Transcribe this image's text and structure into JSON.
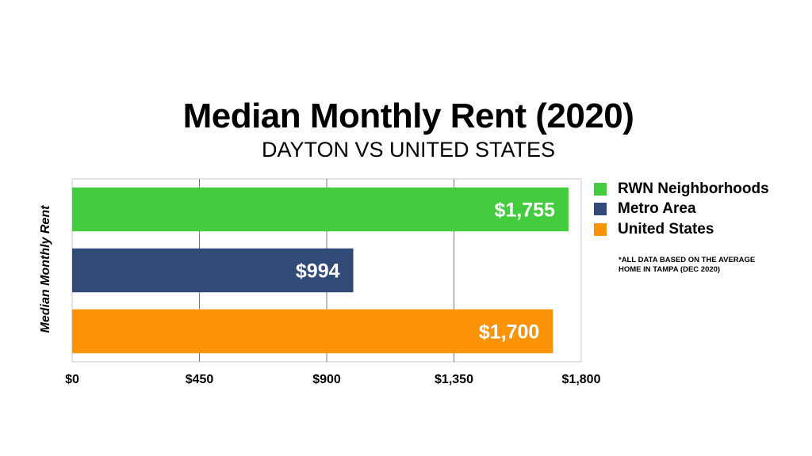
{
  "chart_data": {
    "type": "bar",
    "orientation": "horizontal",
    "title": "Median Monthly Rent (2020)",
    "subtitle": "DAYTON VS UNITED STATES",
    "ylabel": "Median Monthly Rent",
    "xlabel": "",
    "xlim": [
      0,
      1800
    ],
    "ticks": [
      0,
      450,
      900,
      1350,
      1800
    ],
    "tick_labels": [
      "$0",
      "$450",
      "$900",
      "$1,350",
      "$1,800"
    ],
    "grid": true,
    "legend_position": "right",
    "categories": [
      "RWN Neighborhoods",
      "Metro Area",
      "United States"
    ],
    "values": [
      1755,
      994,
      1700
    ],
    "value_labels": [
      "$1,755",
      "$994",
      "$1,700"
    ],
    "colors": [
      "#43cd3e",
      "#324a78",
      "#fc9307"
    ],
    "note": "*ALL DATA BASED ON THE AVERAGE HOME IN TAMPA (DEC 2020)"
  }
}
